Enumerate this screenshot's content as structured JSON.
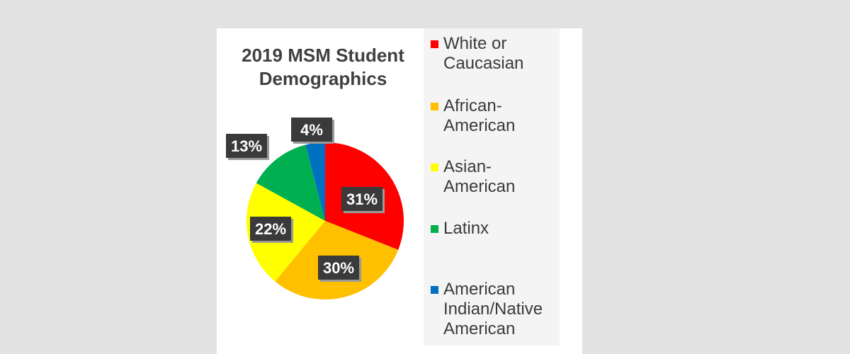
{
  "chart_data": {
    "type": "pie",
    "title": [
      "2019 MSM Student",
      "Demographics"
    ],
    "labels_printed": [
      "31%",
      "30%",
      "22%",
      "13%",
      "4%"
    ],
    "series": [
      {
        "label": [
          "White or",
          "Caucasian"
        ],
        "value": 31,
        "color": "#ff0000"
      },
      {
        "label": [
          "African-",
          "American"
        ],
        "value": 30,
        "color": "#ffc000"
      },
      {
        "label": [
          "Asian-",
          "American"
        ],
        "value": 22,
        "color": "#ffff00"
      },
      {
        "label": [
          "Latinx"
        ],
        "value": 13,
        "color": "#00b050"
      },
      {
        "label": [
          "American",
          "Indian/Native",
          "American"
        ],
        "value": 4,
        "color": "#0070c0"
      }
    ],
    "data_labels": [
      "31%",
      "30%",
      "22%",
      "13%",
      "4%"
    ],
    "legend_position": "right"
  }
}
